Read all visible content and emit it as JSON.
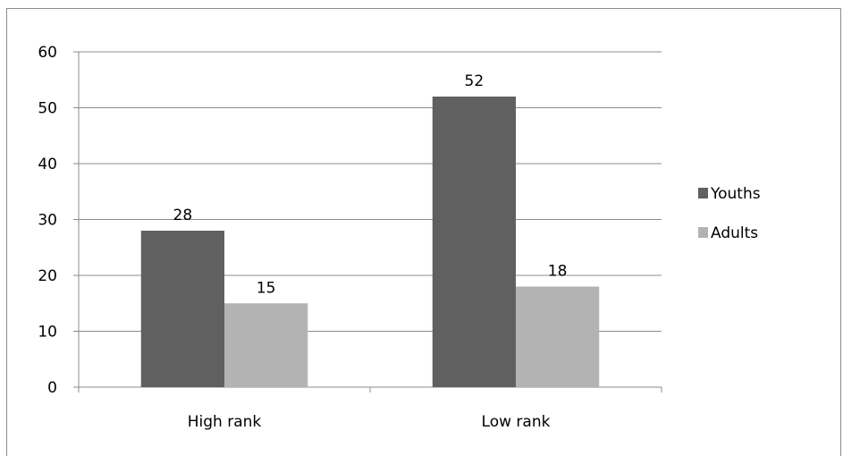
{
  "chart_data": {
    "type": "bar",
    "categories": [
      "High rank",
      "Low rank"
    ],
    "series": [
      {
        "name": "Youths",
        "values": [
          28,
          52
        ],
        "color": "#606060"
      },
      {
        "name": "Adults",
        "values": [
          15,
          18
        ],
        "color": "#b3b3b3"
      }
    ],
    "ylim": [
      0,
      60
    ],
    "yticks": [
      0,
      10,
      20,
      30,
      40,
      50,
      60
    ],
    "grid": true,
    "legend_position": "right",
    "data_labels": true
  }
}
